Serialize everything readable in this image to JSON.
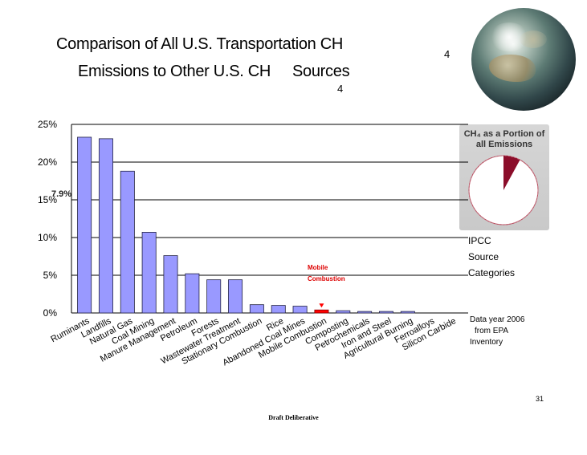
{
  "slide": {
    "title_line1": "Comparison of All U.S. Transportation CH",
    "title_line2": "Emissions to Other U.S. CH",
    "title_line2_tail": "Sources",
    "subscript_line1": "4",
    "subscript_line2": "4",
    "page_number": "31",
    "footer": "Draft Deliberative"
  },
  "inset": {
    "title": "CH₄ as a Portion of all Emissions",
    "value_label": "7.9%",
    "slice_color": "#8b0d2a"
  },
  "legend_note": {
    "line1": "IPCC",
    "line2": "Source",
    "line3": "Categories"
  },
  "source_note": {
    "line1": "Data year 2006",
    "line2": "from EPA",
    "line3": "Inventory"
  },
  "annotation": {
    "line1": "Mobile",
    "line2": "Combustion",
    "color": "#dd0000"
  },
  "chart_data": {
    "type": "bar",
    "categories": [
      "Ruminants",
      "Landfills",
      "Natural Gas",
      "Coal Mining",
      "Manure Management",
      "Petroleum",
      "Forests",
      "Wastewater Treatment",
      "Stationary Combustion",
      "Rice",
      "Abandoned Coal Mines",
      "Mobile Combustion",
      "Composting",
      "Petrochemicals",
      "Iron and Steel",
      "Agricultural Burning",
      "Ferroalloys",
      "Silicon Carbide"
    ],
    "values": [
      23.3,
      23.1,
      18.8,
      10.7,
      7.6,
      5.2,
      4.4,
      4.4,
      1.1,
      1.0,
      0.9,
      0.4,
      0.3,
      0.2,
      0.2,
      0.2,
      0.0,
      0.0
    ],
    "highlight_index": 11,
    "bar_color": "#9999ff",
    "highlight_color": "#ff0000",
    "ylim": [
      0,
      25
    ],
    "yticks": [
      "0%",
      "5%",
      "10%",
      "15%",
      "20%",
      "25%"
    ],
    "grid": true,
    "xlabel": "",
    "ylabel": ""
  }
}
